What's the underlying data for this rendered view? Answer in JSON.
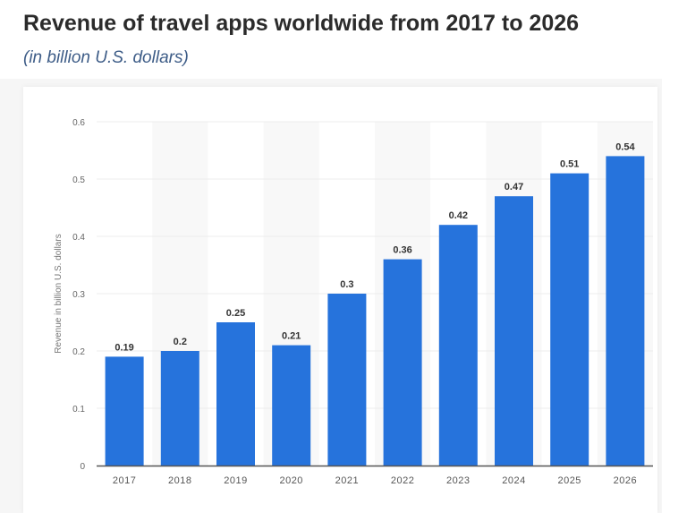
{
  "chart_data": {
    "type": "bar",
    "title": "Revenue of travel apps worldwide from 2017 to 2026",
    "subtitle": "(in billion U.S. dollars)",
    "xlabel": "",
    "ylabel": "Revenue in billion U.S. dollars",
    "categories": [
      "2017",
      "2018",
      "2019",
      "2020",
      "2021",
      "2022",
      "2023",
      "2024",
      "2025",
      "2026"
    ],
    "values": [
      0.19,
      0.2,
      0.25,
      0.21,
      0.3,
      0.36,
      0.42,
      0.47,
      0.51,
      0.54
    ],
    "value_labels": [
      "0.19",
      "0.2",
      "0.25",
      "0.21",
      "0.3",
      "0.36",
      "0.42",
      "0.47",
      "0.51",
      "0.54"
    ],
    "ylim": [
      0,
      0.6
    ],
    "yticks": [
      "0",
      "0.1",
      "0.2",
      "0.3",
      "0.4",
      "0.5",
      "0.6"
    ],
    "grid": true,
    "bar_color": "#2673dc"
  }
}
